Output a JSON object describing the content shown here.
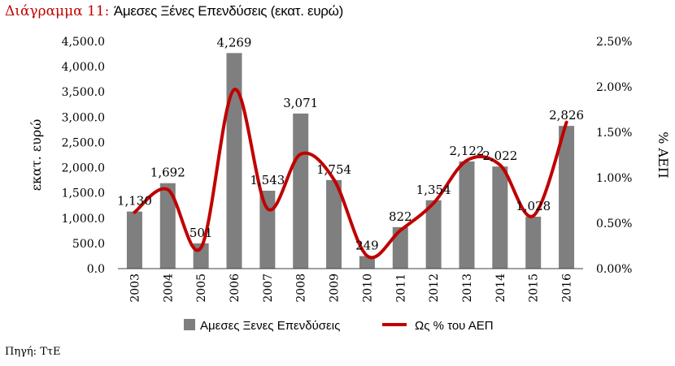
{
  "header": {
    "title_prefix": "Διάγραμμα 11:",
    "title_text": "Άμεσες Ξένες Επενδύσεις (εκατ. ευρώ)"
  },
  "footer": {
    "source": "Πηγή: ΤτΕ"
  },
  "colors": {
    "title_prefix": "#c00000",
    "bars": "#7f7f7f",
    "line": "#c00000",
    "axis": "#404040"
  },
  "chart_data": {
    "type": "bar",
    "categories": [
      "2003",
      "2004",
      "2005",
      "2006",
      "2007",
      "2008",
      "2009",
      "2010",
      "2011",
      "2012",
      "2013",
      "2014",
      "2015",
      "2016"
    ],
    "series": [
      {
        "name": "Αμεσες Ξενες Επενδύσεις",
        "type": "bar",
        "axis": "left",
        "values": [
          1130,
          1692,
          501,
          4269,
          1543,
          3071,
          1754,
          249,
          822,
          1354,
          2122,
          2022,
          1028,
          2826
        ],
        "labels": [
          "1,130",
          "1,692",
          "501",
          "4,269",
          "1,543",
          "3,071",
          "1,754",
          "249",
          "822",
          "1,354",
          "2,122",
          "2,022",
          "1,028",
          "2,826"
        ]
      },
      {
        "name": "Ως % του ΑΕΠ",
        "type": "line",
        "smooth": true,
        "axis": "right",
        "values": [
          0.0062,
          0.0087,
          0.0023,
          0.0197,
          0.0066,
          0.0126,
          0.0098,
          0.0014,
          0.0042,
          0.0072,
          0.0119,
          0.0114,
          0.0058,
          0.0161
        ]
      }
    ],
    "ylabel": "εκατ. ευρώ",
    "y2label": "% ΑΕΠ",
    "ylim": [
      0,
      4500
    ],
    "y2lim": [
      0,
      0.025
    ],
    "yticks": [
      "0.0",
      "500.0",
      "1,000.0",
      "1,500.0",
      "2,000.0",
      "2,500.0",
      "3,000.0",
      "3,500.0",
      "4,000.0",
      "4,500.0"
    ],
    "y2ticks": [
      "0.00%",
      "0.50%",
      "1.00%",
      "1.50%",
      "2.00%",
      "2.50%"
    ],
    "grid": true,
    "legend": "bottom"
  }
}
